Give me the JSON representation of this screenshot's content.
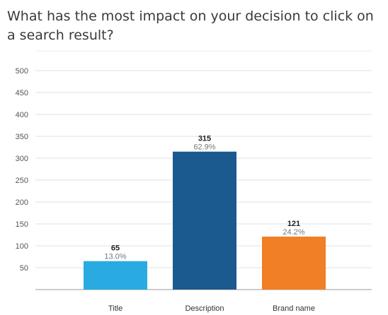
{
  "chart_data": {
    "type": "bar",
    "title": "What has the most impact on your decision to click on a search result?",
    "categories": [
      "Title",
      "Description",
      "Brand name"
    ],
    "values": [
      65,
      315,
      121
    ],
    "percent_labels": [
      "13.0%",
      "62.9%",
      "24.2%"
    ],
    "colors": [
      "#29abe2",
      "#1b5a8e",
      "#f07f26"
    ],
    "ylim": [
      0,
      500
    ],
    "yticks": [
      50,
      100,
      150,
      200,
      250,
      300,
      350,
      400,
      450,
      500
    ],
    "grid": true
  }
}
